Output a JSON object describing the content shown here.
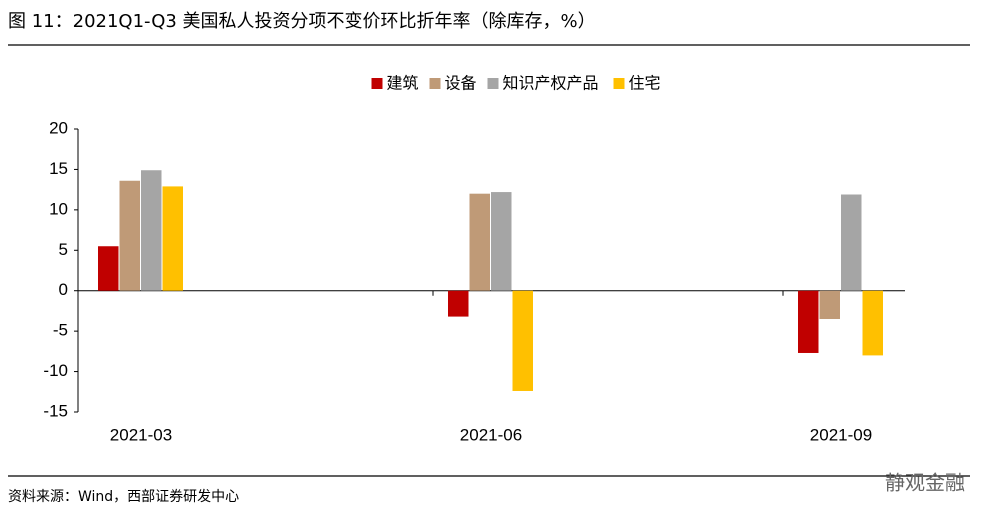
{
  "title": "图 11：2021Q1-Q3 美国私人投资分项不变价环比折年率（除库存，%）",
  "source": "资料来源：Wind，西部证券研发中心",
  "watermark": "静观金融",
  "chart_data": {
    "type": "bar",
    "categories": [
      "2021-03",
      "2021-06",
      "2021-09"
    ],
    "series": [
      {
        "name": "建筑",
        "color": "#c00000",
        "values": [
          5.5,
          -3.2,
          -7.7
        ]
      },
      {
        "name": "设备",
        "color": "#bf9a77",
        "values": [
          13.6,
          12.0,
          -3.5
        ]
      },
      {
        "name": "知识产权产品",
        "color": "#a5a5a5",
        "values": [
          14.9,
          12.2,
          11.9
        ]
      },
      {
        "name": "住宅",
        "color": "#ffc000",
        "values": [
          12.9,
          -12.4,
          -8.0
        ]
      }
    ],
    "ylim": [
      -15,
      20
    ],
    "yticks": [
      -15,
      -10,
      -5,
      0,
      5,
      10,
      15,
      20
    ],
    "legend": "top",
    "grid": false
  }
}
